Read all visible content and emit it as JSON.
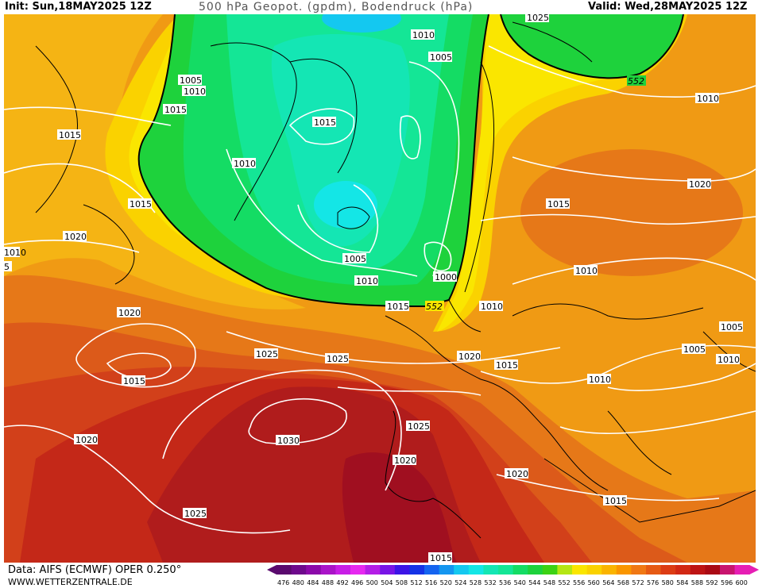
{
  "header": {
    "init": "Init: Sun,18MAY2025 12Z",
    "title": "500 hPa Geopot. (gpdm), Bodendruck (hPa)",
    "valid": "Valid: Wed,28MAY2025 12Z"
  },
  "footer": {
    "data_source": "Data: AIFS (ECMWF) OPER 0.250°",
    "website": "WWW.WETTERZENTRALE.DE"
  },
  "scale": {
    "values": [
      "476",
      "480",
      "484",
      "488",
      "492",
      "496",
      "500",
      "504",
      "508",
      "512",
      "516",
      "520",
      "524",
      "528",
      "532",
      "536",
      "540",
      "544",
      "548",
      "552",
      "556",
      "560",
      "564",
      "568",
      "572",
      "576",
      "580",
      "584",
      "588",
      "592",
      "596",
      "600"
    ],
    "colors": [
      "#5a0a6e",
      "#6e0a8c",
      "#8c0aaa",
      "#aa14c8",
      "#c81ee6",
      "#e628f0",
      "#b41ee6",
      "#7814e6",
      "#3c14e6",
      "#1432e6",
      "#1464f0",
      "#1496f0",
      "#14c8f0",
      "#14e6e6",
      "#14e6b4",
      "#14e696",
      "#14dc64",
      "#1ed23c",
      "#3cd214",
      "#b4e614",
      "#fae600",
      "#fad200",
      "#fab400",
      "#fa9600",
      "#f07814",
      "#e65a14",
      "#dc3c14",
      "#d22814",
      "#be1414",
      "#aa0a14",
      "#c8146e",
      "#e61eb4"
    ]
  },
  "map": {
    "contour_labels": {
      "geopot": [
        "552",
        "552"
      ],
      "pressure": [
        "1025",
        "1010",
        "1005",
        "1005",
        "1010",
        "1015",
        "1015",
        "1015",
        "1010",
        "1015",
        "1020",
        "1010",
        "1005",
        "1010",
        "1000",
        "1015",
        "1010",
        "1020",
        "1020",
        "1025",
        "1025",
        "1020",
        "1015",
        "1015",
        "1030",
        "1025",
        "1020",
        "1020",
        "1010",
        "1005",
        "1005",
        "1010",
        "1010",
        "1015",
        "1025",
        "1020",
        "1015",
        "1010",
        "1015",
        "5"
      ]
    }
  }
}
